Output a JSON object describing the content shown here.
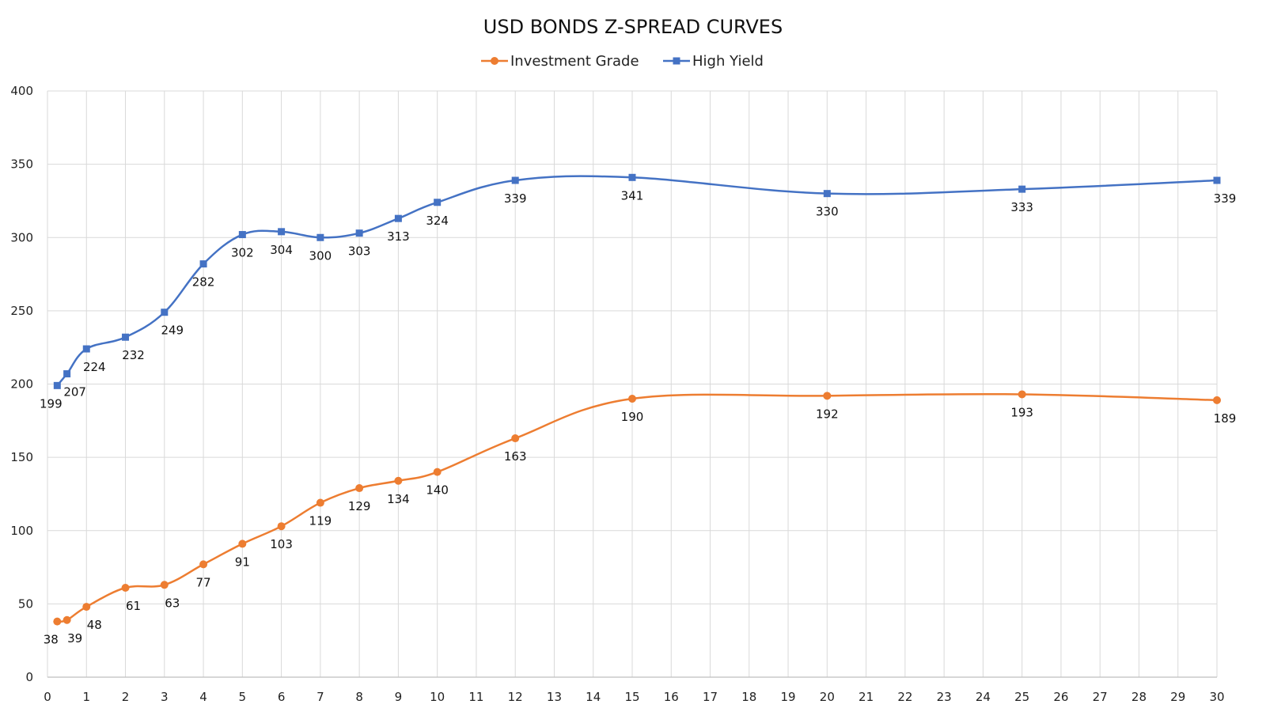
{
  "chart_data": {
    "type": "line",
    "title": "USD BONDS Z-SPREAD CURVES",
    "xlabel": "",
    "ylabel": "",
    "xlim": [
      0,
      30
    ],
    "ylim": [
      0,
      400
    ],
    "x_ticks": [
      0,
      1,
      2,
      3,
      4,
      5,
      6,
      7,
      8,
      9,
      10,
      11,
      12,
      13,
      14,
      15,
      16,
      17,
      18,
      19,
      20,
      21,
      22,
      23,
      24,
      25,
      26,
      27,
      28,
      29,
      30
    ],
    "y_ticks": [
      0,
      50,
      100,
      150,
      200,
      250,
      300,
      350,
      400
    ],
    "grid": true,
    "legend_position": "top-center",
    "series": [
      {
        "name": "Investment Grade",
        "color": "#ED7D31",
        "marker": "circle",
        "x": [
          0.25,
          0.5,
          1,
          2,
          3,
          4,
          5,
          6,
          7,
          8,
          9,
          10,
          12,
          15,
          20,
          25,
          30
        ],
        "values": [
          38,
          39,
          48,
          61,
          63,
          77,
          91,
          103,
          119,
          129,
          134,
          140,
          163,
          190,
          192,
          193,
          189
        ]
      },
      {
        "name": "High Yield",
        "color": "#4472C4",
        "marker": "square",
        "x": [
          0.25,
          0.5,
          1,
          2,
          3,
          4,
          5,
          6,
          7,
          8,
          9,
          10,
          12,
          15,
          20,
          25,
          30
        ],
        "values": [
          199,
          207,
          224,
          232,
          249,
          282,
          302,
          304,
          300,
          303,
          313,
          324,
          339,
          341,
          330,
          333,
          339
        ]
      }
    ]
  }
}
